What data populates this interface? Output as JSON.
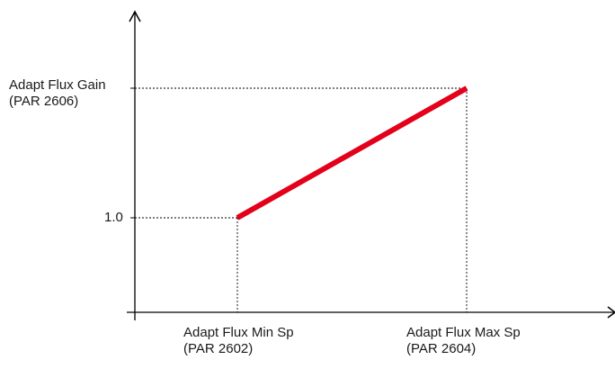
{
  "y_axis": {
    "label_top": {
      "line1": "Adapt Flux Gain",
      "line2": "(PAR 2606)"
    },
    "label_low": "1.0"
  },
  "x_axis": {
    "label_min": {
      "line1": "Adapt Flux Min Sp",
      "line2": "(PAR 2602)"
    },
    "label_max": {
      "line1": "Adapt Flux Max Sp",
      "line2": "(PAR 2604)"
    }
  },
  "colors": {
    "axes": "#000000",
    "guides": "#000000",
    "ramp": "#e3001b"
  }
}
